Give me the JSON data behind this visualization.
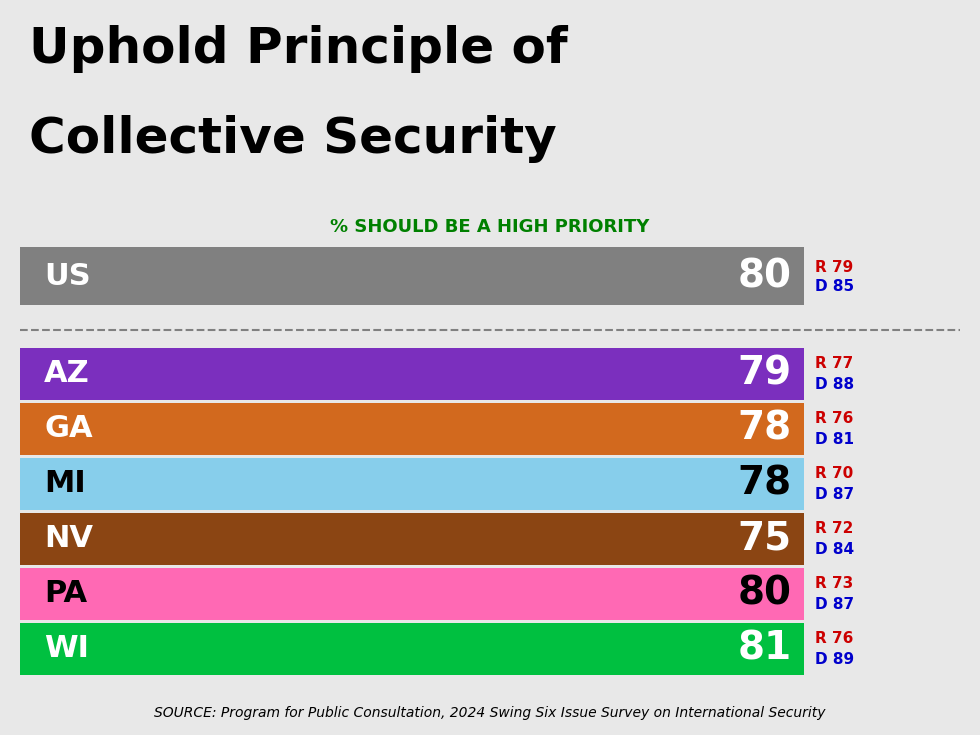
{
  "title_line1": "Uphold Principle of",
  "title_line2": "Collective Security",
  "subtitle": "% SHOULD BE A HIGH PRIORITY",
  "subtitle_color": "#008000",
  "background_color": "#e8e8e8",
  "source_text": "SOURCE: Program for Public Consultation, 2024 Swing Six Issue Survey on International Security",
  "states": [
    "US",
    "AZ",
    "GA",
    "MI",
    "NV",
    "PA",
    "WI"
  ],
  "values": [
    80,
    79,
    78,
    78,
    75,
    80,
    81
  ],
  "bar_colors": [
    "#808080",
    "#7b2fbe",
    "#d2691e",
    "#87ceeb",
    "#8b4513",
    "#ff69b4",
    "#00c040"
  ],
  "label_colors": [
    "#ffffff",
    "#ffffff",
    "#ffffff",
    "#000000",
    "#ffffff",
    "#000000",
    "#ffffff"
  ],
  "R_values": [
    79,
    77,
    76,
    70,
    72,
    73,
    76
  ],
  "D_values": [
    85,
    88,
    81,
    87,
    84,
    87,
    89
  ],
  "R_color": "#cc0000",
  "D_color": "#0000cc",
  "title_fontsize": 36,
  "subtitle_fontsize": 13,
  "state_label_fontsize": 22,
  "value_fontsize": 28,
  "rd_fontsize": 11,
  "source_fontsize": 10
}
